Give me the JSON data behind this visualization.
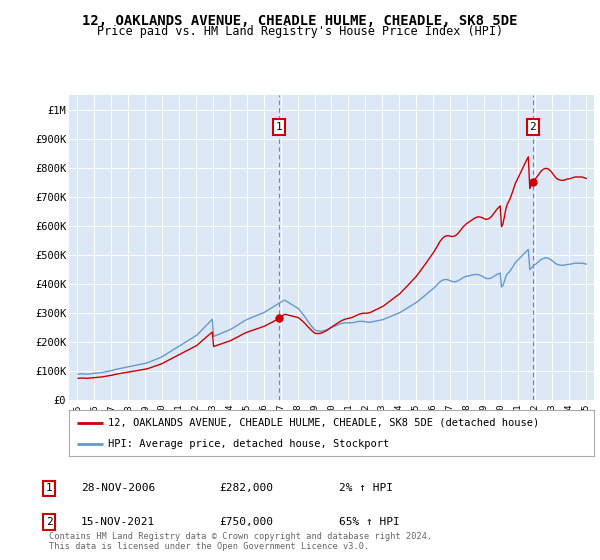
{
  "title": "12, OAKLANDS AVENUE, CHEADLE HULME, CHEADLE, SK8 5DE",
  "subtitle": "Price paid vs. HM Land Registry's House Price Index (HPI)",
  "fig_bg_color": "#ffffff",
  "plot_bg_color": "#dce8f5",
  "legend_line1": "12, OAKLANDS AVENUE, CHEADLE HULME, CHEADLE, SK8 5DE (detached house)",
  "legend_line2": "HPI: Average price, detached house, Stockport",
  "footer": "Contains HM Land Registry data © Crown copyright and database right 2024.\nThis data is licensed under the Open Government Licence v3.0.",
  "annotation1_label": "1",
  "annotation1_date": "28-NOV-2006",
  "annotation1_price": "£282,000",
  "annotation1_hpi": "2% ↑ HPI",
  "annotation2_label": "2",
  "annotation2_date": "15-NOV-2021",
  "annotation2_price": "£750,000",
  "annotation2_hpi": "65% ↑ HPI",
  "hpi_color": "#6699cc",
  "price_color": "#cc0000",
  "annotation_color": "#cc0000",
  "ylim_max": 1050000,
  "yticks": [
    0,
    100000,
    200000,
    300000,
    400000,
    500000,
    600000,
    700000,
    800000,
    900000,
    1000000
  ],
  "ytick_labels": [
    "£0",
    "£100K",
    "£200K",
    "£300K",
    "£400K",
    "£500K",
    "£600K",
    "£700K",
    "£800K",
    "£900K",
    "£1M"
  ],
  "xlim_start": 1994.5,
  "xlim_end": 2025.5,
  "xticks": [
    1995,
    1996,
    1997,
    1998,
    1999,
    2000,
    2001,
    2002,
    2003,
    2004,
    2005,
    2006,
    2007,
    2008,
    2009,
    2010,
    2011,
    2012,
    2013,
    2014,
    2015,
    2016,
    2017,
    2018,
    2019,
    2020,
    2021,
    2022,
    2023,
    2024,
    2025
  ],
  "ann1_x": 2006.92,
  "ann1_y": 282000,
  "ann2_x": 2021.88,
  "ann2_y": 750000,
  "sale1_year": 2006.92,
  "sale1_price": 282000,
  "sale2_year": 2021.88,
  "sale2_price": 750000,
  "hpi_monthly_years": [
    1995.04,
    1995.12,
    1995.21,
    1995.29,
    1995.37,
    1995.46,
    1995.54,
    1995.62,
    1995.71,
    1995.79,
    1995.87,
    1995.96,
    1996.04,
    1996.12,
    1996.21,
    1996.29,
    1996.37,
    1996.46,
    1996.54,
    1996.62,
    1996.71,
    1996.79,
    1996.87,
    1996.96,
    1997.04,
    1997.12,
    1997.21,
    1997.29,
    1997.37,
    1997.46,
    1997.54,
    1997.62,
    1997.71,
    1997.79,
    1997.87,
    1997.96,
    1998.04,
    1998.12,
    1998.21,
    1998.29,
    1998.37,
    1998.46,
    1998.54,
    1998.62,
    1998.71,
    1998.79,
    1998.87,
    1998.96,
    1999.04,
    1999.12,
    1999.21,
    1999.29,
    1999.37,
    1999.46,
    1999.54,
    1999.62,
    1999.71,
    1999.79,
    1999.87,
    1999.96,
    2000.04,
    2000.12,
    2000.21,
    2000.29,
    2000.37,
    2000.46,
    2000.54,
    2000.62,
    2000.71,
    2000.79,
    2000.87,
    2000.96,
    2001.04,
    2001.12,
    2001.21,
    2001.29,
    2001.37,
    2001.46,
    2001.54,
    2001.62,
    2001.71,
    2001.79,
    2001.87,
    2001.96,
    2002.04,
    2002.12,
    2002.21,
    2002.29,
    2002.37,
    2002.46,
    2002.54,
    2002.62,
    2002.71,
    2002.79,
    2002.87,
    2002.96,
    2003.04,
    2003.12,
    2003.21,
    2003.29,
    2003.37,
    2003.46,
    2003.54,
    2003.62,
    2003.71,
    2003.79,
    2003.87,
    2003.96,
    2004.04,
    2004.12,
    2004.21,
    2004.29,
    2004.37,
    2004.46,
    2004.54,
    2004.62,
    2004.71,
    2004.79,
    2004.87,
    2004.96,
    2005.04,
    2005.12,
    2005.21,
    2005.29,
    2005.37,
    2005.46,
    2005.54,
    2005.62,
    2005.71,
    2005.79,
    2005.87,
    2005.96,
    2006.04,
    2006.12,
    2006.21,
    2006.29,
    2006.37,
    2006.46,
    2006.54,
    2006.62,
    2006.71,
    2006.79,
    2006.87,
    2006.96,
    2007.04,
    2007.12,
    2007.21,
    2007.29,
    2007.37,
    2007.46,
    2007.54,
    2007.62,
    2007.71,
    2007.79,
    2007.87,
    2007.96,
    2008.04,
    2008.12,
    2008.21,
    2008.29,
    2008.37,
    2008.46,
    2008.54,
    2008.62,
    2008.71,
    2008.79,
    2008.87,
    2008.96,
    2009.04,
    2009.12,
    2009.21,
    2009.29,
    2009.37,
    2009.46,
    2009.54,
    2009.62,
    2009.71,
    2009.79,
    2009.87,
    2009.96,
    2010.04,
    2010.12,
    2010.21,
    2010.29,
    2010.37,
    2010.46,
    2010.54,
    2010.62,
    2010.71,
    2010.79,
    2010.87,
    2010.96,
    2011.04,
    2011.12,
    2011.21,
    2011.29,
    2011.37,
    2011.46,
    2011.54,
    2011.62,
    2011.71,
    2011.79,
    2011.87,
    2011.96,
    2012.04,
    2012.12,
    2012.21,
    2012.29,
    2012.37,
    2012.46,
    2012.54,
    2012.62,
    2012.71,
    2012.79,
    2012.87,
    2012.96,
    2013.04,
    2013.12,
    2013.21,
    2013.29,
    2013.37,
    2013.46,
    2013.54,
    2013.62,
    2013.71,
    2013.79,
    2013.87,
    2013.96,
    2014.04,
    2014.12,
    2014.21,
    2014.29,
    2014.37,
    2014.46,
    2014.54,
    2014.62,
    2014.71,
    2014.79,
    2014.87,
    2014.96,
    2015.04,
    2015.12,
    2015.21,
    2015.29,
    2015.37,
    2015.46,
    2015.54,
    2015.62,
    2015.71,
    2015.79,
    2015.87,
    2015.96,
    2016.04,
    2016.12,
    2016.21,
    2016.29,
    2016.37,
    2016.46,
    2016.54,
    2016.62,
    2016.71,
    2016.79,
    2016.87,
    2016.96,
    2017.04,
    2017.12,
    2017.21,
    2017.29,
    2017.37,
    2017.46,
    2017.54,
    2017.62,
    2017.71,
    2017.79,
    2017.87,
    2017.96,
    2018.04,
    2018.12,
    2018.21,
    2018.29,
    2018.37,
    2018.46,
    2018.54,
    2018.62,
    2018.71,
    2018.79,
    2018.87,
    2018.96,
    2019.04,
    2019.12,
    2019.21,
    2019.29,
    2019.37,
    2019.46,
    2019.54,
    2019.62,
    2019.71,
    2019.79,
    2019.87,
    2019.96,
    2020.04,
    2020.12,
    2020.21,
    2020.29,
    2020.37,
    2020.46,
    2020.54,
    2020.62,
    2020.71,
    2020.79,
    2020.87,
    2020.96,
    2021.04,
    2021.12,
    2021.21,
    2021.29,
    2021.37,
    2021.46,
    2021.54,
    2021.62,
    2021.71,
    2021.79,
    2021.87,
    2021.96,
    2022.04,
    2022.12,
    2022.21,
    2022.29,
    2022.37,
    2022.46,
    2022.54,
    2022.62,
    2022.71,
    2022.79,
    2022.87,
    2022.96,
    2023.04,
    2023.12,
    2023.21,
    2023.29,
    2023.37,
    2023.46,
    2023.54,
    2023.62,
    2023.71,
    2023.79,
    2023.87,
    2023.96,
    2024.04,
    2024.12,
    2024.21,
    2024.29,
    2024.37,
    2024.46,
    2024.54,
    2024.62,
    2024.71,
    2024.79,
    2024.87,
    2024.96,
    2025.04
  ],
  "hpi_monthly_values": [
    90000,
    90500,
    91000,
    91500,
    91000,
    90500,
    90000,
    90500,
    91000,
    91500,
    92000,
    92500,
    93000,
    93500,
    94000,
    94500,
    95000,
    96000,
    97000,
    98000,
    99000,
    100000,
    101000,
    102000,
    103000,
    104000,
    106000,
    107000,
    108000,
    109000,
    110000,
    111000,
    112000,
    113000,
    114000,
    115000,
    116000,
    117000,
    118000,
    119000,
    120000,
    121000,
    122000,
    123000,
    124000,
    125000,
    126000,
    127000,
    128000,
    129000,
    131000,
    133000,
    135000,
    137000,
    139000,
    141000,
    143000,
    145000,
    147000,
    149000,
    152000,
    155000,
    158000,
    161000,
    164000,
    167000,
    170000,
    173000,
    176000,
    179000,
    182000,
    185000,
    188000,
    191000,
    194000,
    197000,
    200000,
    203000,
    206000,
    209000,
    212000,
    215000,
    218000,
    221000,
    224000,
    229000,
    234000,
    239000,
    244000,
    249000,
    254000,
    259000,
    264000,
    269000,
    274000,
    279000,
    220000,
    222000,
    224000,
    226000,
    228000,
    230000,
    232000,
    234000,
    236000,
    238000,
    240000,
    242000,
    244000,
    247000,
    250000,
    253000,
    256000,
    259000,
    262000,
    265000,
    268000,
    271000,
    274000,
    277000,
    279000,
    281000,
    283000,
    285000,
    287000,
    289000,
    291000,
    293000,
    295000,
    297000,
    299000,
    301000,
    303000,
    306000,
    309000,
    312000,
    315000,
    318000,
    321000,
    324000,
    327000,
    330000,
    333000,
    336000,
    339000,
    342000,
    345000,
    343000,
    340000,
    337000,
    334000,
    331000,
    328000,
    325000,
    322000,
    319000,
    316000,
    310000,
    304000,
    298000,
    292000,
    285000,
    278000,
    271000,
    264000,
    258000,
    252000,
    246000,
    242000,
    240000,
    239000,
    238000,
    238000,
    239000,
    240000,
    241000,
    243000,
    245000,
    247000,
    250000,
    252000,
    254000,
    256000,
    258000,
    260000,
    262000,
    264000,
    265000,
    266000,
    267000,
    267000,
    267000,
    267000,
    267000,
    267000,
    268000,
    269000,
    270000,
    271000,
    272000,
    272000,
    272000,
    272000,
    271000,
    270000,
    269000,
    269000,
    269000,
    270000,
    271000,
    272000,
    273000,
    274000,
    275000,
    276000,
    277000,
    278000,
    280000,
    282000,
    284000,
    286000,
    288000,
    290000,
    292000,
    294000,
    296000,
    298000,
    300000,
    302000,
    305000,
    308000,
    311000,
    314000,
    317000,
    320000,
    323000,
    326000,
    329000,
    332000,
    335000,
    338000,
    342000,
    346000,
    350000,
    354000,
    358000,
    362000,
    366000,
    370000,
    374000,
    378000,
    382000,
    386000,
    391000,
    396000,
    401000,
    406000,
    410000,
    413000,
    415000,
    416000,
    416000,
    415000,
    413000,
    411000,
    409000,
    408000,
    408000,
    409000,
    411000,
    414000,
    417000,
    420000,
    423000,
    425000,
    427000,
    428000,
    429000,
    430000,
    431000,
    432000,
    433000,
    433000,
    433000,
    432000,
    430000,
    428000,
    425000,
    422000,
    420000,
    419000,
    419000,
    420000,
    422000,
    425000,
    428000,
    431000,
    434000,
    436000,
    438000,
    390000,
    395000,
    410000,
    425000,
    435000,
    440000,
    445000,
    452000,
    460000,
    468000,
    475000,
    480000,
    485000,
    490000,
    495000,
    500000,
    505000,
    510000,
    515000,
    519000,
    450000,
    455000,
    460000,
    465000,
    468000,
    472000,
    476000,
    480000,
    484000,
    487000,
    489000,
    490000,
    490000,
    489000,
    487000,
    484000,
    480000,
    476000,
    472000,
    469000,
    467000,
    466000,
    465000,
    465000,
    465000,
    466000,
    467000,
    468000,
    468000,
    469000,
    470000,
    471000,
    472000,
    472000,
    472000,
    472000,
    472000,
    472000,
    471000,
    470000,
    469000
  ]
}
